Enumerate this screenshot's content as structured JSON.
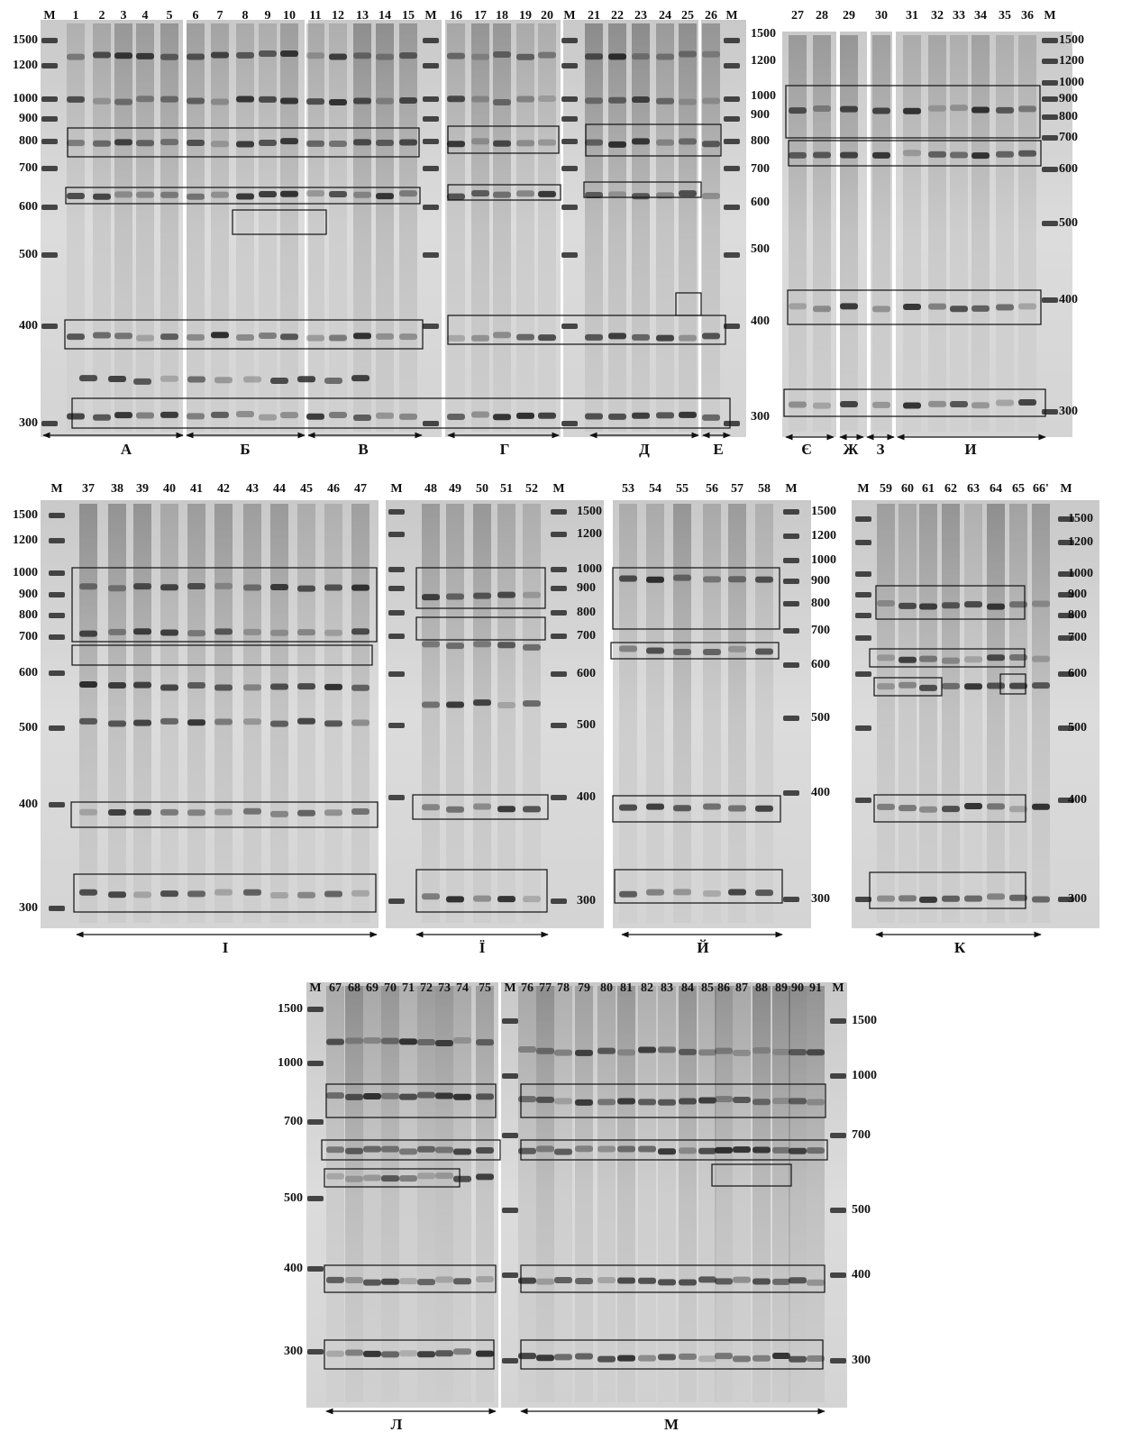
{
  "panels": [
    {
      "lanes": [
        "M",
        "1",
        "2",
        "3",
        "4",
        "5",
        "6",
        "7",
        "8",
        "9",
        "10",
        "11",
        "12",
        "13",
        "14",
        "15",
        "M",
        "16",
        "17",
        "18",
        "19",
        "20",
        "M",
        "21",
        "22",
        "23",
        "24",
        "25",
        "26",
        "M"
      ],
      "sizes_left": [
        1500,
        1200,
        1000,
        900,
        800,
        700,
        600,
        500,
        400,
        300
      ],
      "sizes_right": [
        1500,
        1200,
        1000,
        900,
        800,
        700,
        600,
        500,
        400,
        300
      ],
      "groups": [
        "А",
        "Б",
        "В",
        "Г",
        "Д",
        "Е"
      ]
    },
    {
      "lanes": [
        "27",
        "28",
        "29",
        "30",
        "31",
        "32",
        "33",
        "34",
        "35",
        "36",
        "M"
      ],
      "sizes_right": [
        1500,
        1200,
        1000,
        900,
        800,
        700,
        600,
        500,
        400,
        300
      ],
      "groups": [
        "Є",
        "Ж",
        "З",
        "И"
      ]
    },
    {
      "lanes": [
        "M",
        "37",
        "38",
        "39",
        "40",
        "41",
        "42",
        "43",
        "44",
        "45",
        "46",
        "47"
      ],
      "sizes_left": [
        1500,
        1200,
        1000,
        900,
        800,
        700,
        600,
        500,
        400,
        300
      ],
      "groups": [
        "І"
      ]
    },
    {
      "lanes": [
        "M",
        "48",
        "49",
        "50",
        "51",
        "52",
        "M"
      ],
      "sizes_right": [
        1500,
        1200,
        1000,
        900,
        800,
        700,
        600,
        500,
        400,
        300
      ],
      "groups": [
        "Ї"
      ]
    },
    {
      "lanes": [
        "53",
        "54",
        "55",
        "56",
        "57",
        "58",
        "M"
      ],
      "sizes_right": [
        1500,
        1200,
        1000,
        900,
        800,
        700,
        600,
        500,
        400,
        300
      ],
      "groups": [
        "Й"
      ]
    },
    {
      "lanes": [
        "M",
        "59",
        "60",
        "61",
        "62",
        "63",
        "64",
        "65",
        "66'",
        "M"
      ],
      "sizes_right": [
        1500,
        1200,
        1000,
        900,
        800,
        700,
        600,
        500,
        400,
        300
      ],
      "groups": [
        "К"
      ]
    },
    {
      "lanes": [
        "M",
        "67",
        "68",
        "69",
        "70",
        "71",
        "72",
        "73",
        "74",
        "75"
      ],
      "sizes_left": [
        1500,
        1000,
        700,
        500,
        400,
        300
      ],
      "groups": [
        "Л"
      ]
    },
    {
      "lanes": [
        "M",
        "76",
        "77",
        "78",
        "79",
        "80",
        "81",
        "82",
        "83",
        "84",
        "85",
        "86",
        "87",
        "88",
        "89",
        "90",
        "91",
        "M"
      ],
      "sizes_right": [
        1500,
        1000,
        700,
        500,
        400,
        300
      ],
      "groups": [
        "М"
      ]
    }
  ]
}
